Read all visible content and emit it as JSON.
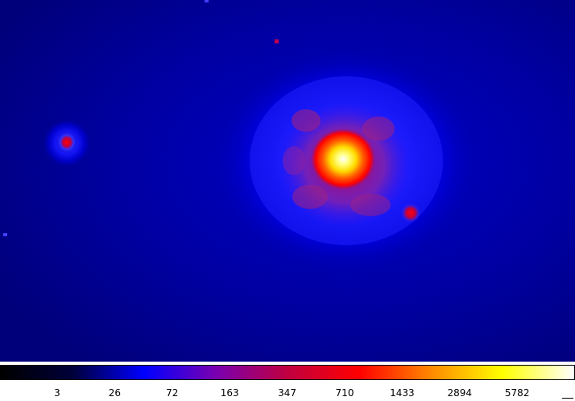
{
  "viewer": {
    "colormap_name": "heat",
    "colorbar_stops": [
      "#000000",
      "#00003a",
      "#0000ff",
      "#7a00b0",
      "#c00040",
      "#ff0000",
      "#ff8800",
      "#ffff00",
      "#ffffff"
    ],
    "colorbar_labels": [
      "3",
      "26",
      "72",
      "163",
      "347",
      "710",
      "1433",
      "2894",
      "5782"
    ],
    "colors": {
      "background_blue": "#000070",
      "halo_blue": "#0000ff",
      "core_red": "#ff0000",
      "core_yellow": "#ffff00",
      "core_white": "#ffffff"
    },
    "sources": [
      {
        "name": "central-bright-source",
        "peak": "5782"
      },
      {
        "name": "left-source",
        "peak": "347"
      },
      {
        "name": "lower-right-knot",
        "peak": "347"
      }
    ]
  }
}
